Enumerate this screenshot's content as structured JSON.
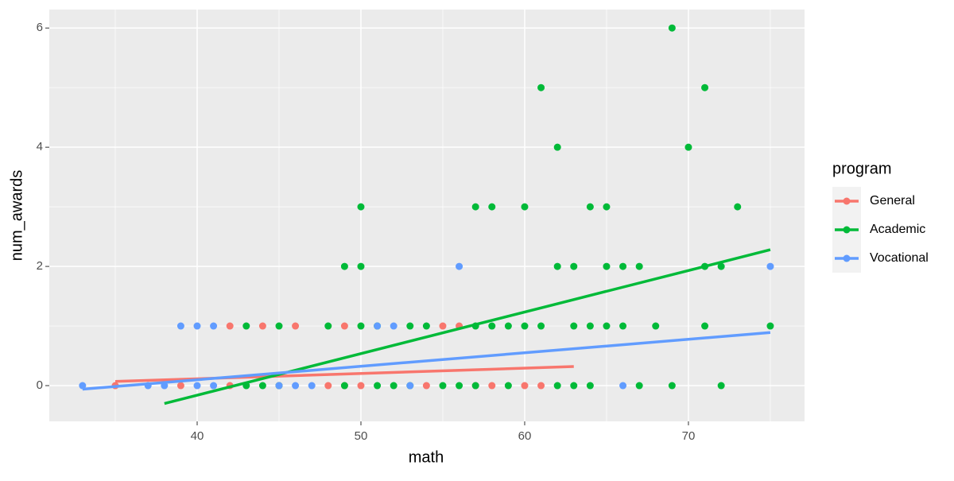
{
  "chart_data": {
    "type": "scatter",
    "x_label": "math",
    "y_label": "num_awards",
    "legend_title": "program",
    "legend": "right",
    "grid": true,
    "xlim": [
      30.97,
      77.09
    ],
    "ylim": [
      -0.6,
      6.31
    ],
    "xticks": [
      40,
      50,
      60,
      70
    ],
    "yticks": [
      0,
      2,
      4,
      6
    ],
    "series": [
      {
        "name": "General",
        "color": "#F8766D",
        "x": [
          35,
          39,
          42,
          45,
          48,
          49,
          50,
          54,
          57,
          58,
          60,
          61,
          42,
          44,
          46,
          49,
          55,
          56
        ],
        "values": [
          0,
          0,
          0,
          0,
          0,
          0,
          0,
          0,
          0,
          0,
          0,
          0,
          1,
          1,
          1,
          1,
          1,
          1
        ],
        "trend": {
          "x": [
            35,
            63
          ],
          "values": [
            0.07,
            0.32
          ]
        }
      },
      {
        "name": "Academic",
        "color": "#00BA38",
        "x": [
          43,
          44,
          45,
          49,
          51,
          52,
          53,
          55,
          56,
          57,
          59,
          62,
          63,
          64,
          67,
          69,
          72,
          43,
          45,
          48,
          50,
          51,
          53,
          54,
          57,
          58,
          59,
          60,
          61,
          63,
          64,
          65,
          66,
          68,
          71,
          75,
          49,
          50,
          62,
          63,
          65,
          66,
          67,
          71,
          72,
          50,
          57,
          58,
          60,
          64,
          65,
          73,
          62,
          70,
          61,
          71,
          69
        ],
        "values": [
          0,
          0,
          0,
          0,
          0,
          0,
          0,
          0,
          0,
          0,
          0,
          0,
          0,
          0,
          0,
          0,
          0,
          1,
          1,
          1,
          1,
          1,
          1,
          1,
          1,
          1,
          1,
          1,
          1,
          1,
          1,
          1,
          1,
          1,
          1,
          1,
          2,
          2,
          2,
          2,
          2,
          2,
          2,
          2,
          2,
          3,
          3,
          3,
          3,
          3,
          3,
          3,
          4,
          4,
          5,
          5,
          6
        ],
        "trend": {
          "x": [
            38,
            75
          ],
          "values": [
            -0.3,
            2.28
          ]
        }
      },
      {
        "name": "Vocational",
        "color": "#619CFF",
        "x": [
          33,
          37,
          38,
          40,
          41,
          45,
          46,
          47,
          53,
          66,
          39,
          40,
          41,
          51,
          52,
          56,
          75
        ],
        "values": [
          0,
          0,
          0,
          0,
          0,
          0,
          0,
          0,
          0,
          0,
          1,
          1,
          1,
          1,
          1,
          2,
          2
        ],
        "trend": {
          "x": [
            33,
            75
          ],
          "values": [
            -0.06,
            0.89
          ]
        }
      }
    ]
  }
}
